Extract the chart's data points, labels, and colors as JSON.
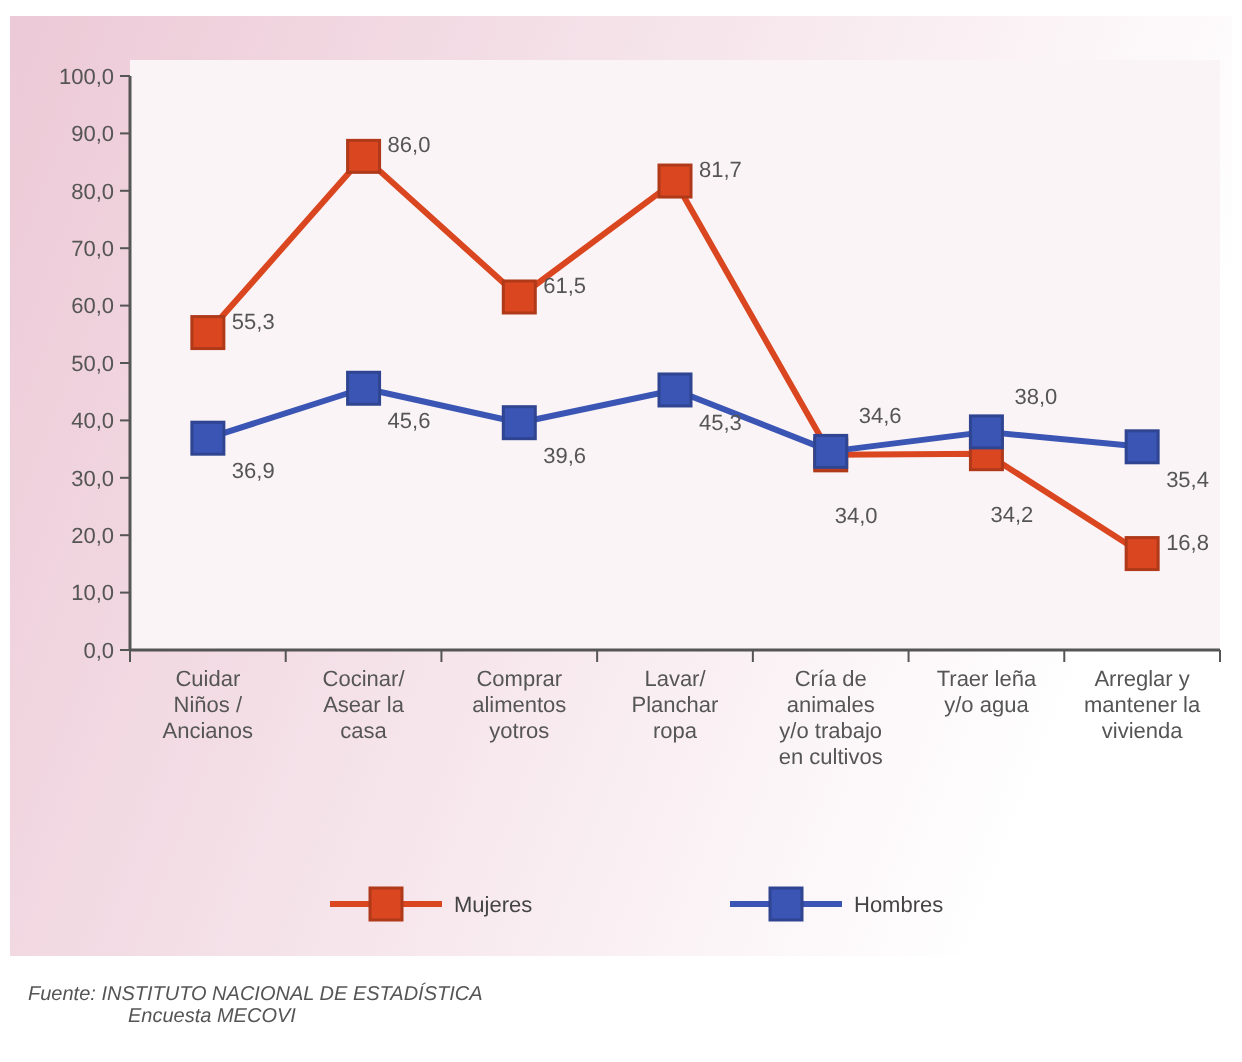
{
  "chart_data": {
    "type": "line",
    "categories": [
      "Cuidar Niños / Ancianos",
      "Cocinar/ Asear la casa",
      "Comprar alimentos yotros",
      "Lavar/ Planchar ropa",
      "Cría de animales y/o trabajo en cultivos",
      "Traer leña y/o agua",
      "Arreglar y mantener la vivienda"
    ],
    "series": [
      {
        "name": "Mujeres",
        "color": "#d9461f",
        "values": [
          55.3,
          86.0,
          61.5,
          81.7,
          34.0,
          34.2,
          16.8
        ],
        "value_labels": [
          "55,3",
          "86,0",
          "61,5",
          "81,7",
          "34,0",
          "34,2",
          "16,8"
        ]
      },
      {
        "name": "Hombres",
        "color": "#3a55b4",
        "values": [
          36.9,
          45.6,
          39.6,
          45.3,
          34.6,
          38.0,
          35.4
        ],
        "value_labels": [
          "36,9",
          "45,6",
          "39,6",
          "45,3",
          "34,6",
          "38,0",
          "35,4"
        ]
      }
    ],
    "ylim": [
      0,
      100
    ],
    "yticks": [
      {
        "value": 0,
        "label": "0,0"
      },
      {
        "value": 10,
        "label": "10,0"
      },
      {
        "value": 20,
        "label": "20,0"
      },
      {
        "value": 30,
        "label": "30,0"
      },
      {
        "value": 40,
        "label": "40,0"
      },
      {
        "value": 50,
        "label": "50,0"
      },
      {
        "value": 60,
        "label": "60,0"
      },
      {
        "value": 70,
        "label": "70,0"
      },
      {
        "value": 80,
        "label": "80,0"
      },
      {
        "value": 90,
        "label": "90,0"
      },
      {
        "value": 100,
        "label": "100,0"
      }
    ],
    "marker": "square",
    "legend": "bottom",
    "grid": false,
    "annotations": [
      "Fuente:  INSTITUTO NACIONAL DE ESTADÍSTICA",
      "Encuesta MECOVI"
    ]
  }
}
